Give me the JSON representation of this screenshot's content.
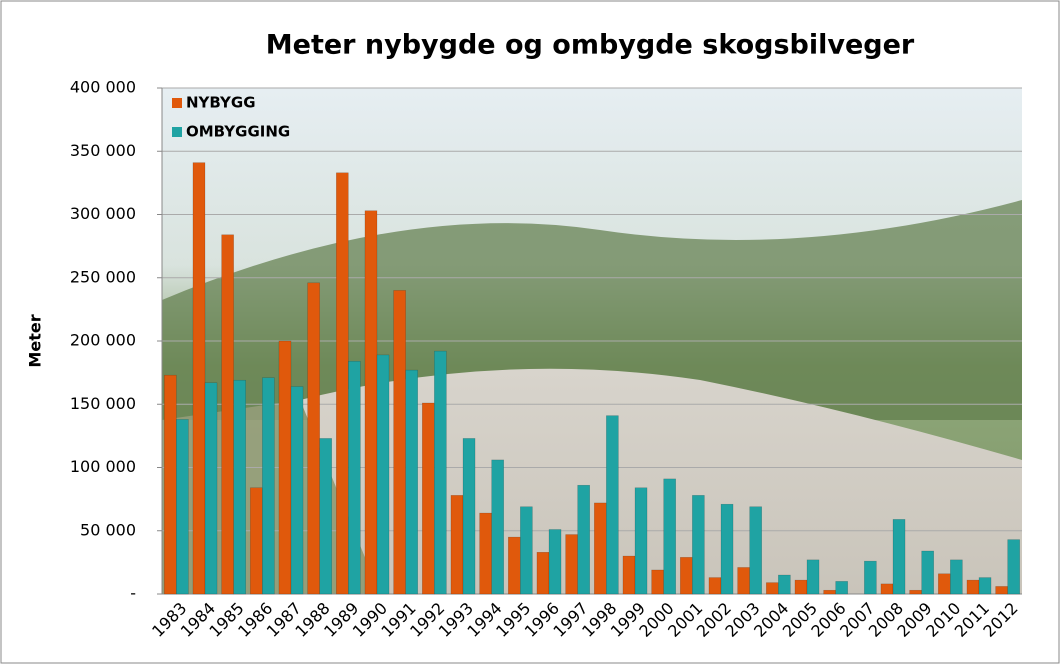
{
  "chart_data": {
    "type": "bar",
    "title": "Meter nybygde og ombygde skogsbilveger",
    "y_label": "Meter",
    "categories": [
      "1983",
      "1984",
      "1985",
      "1986",
      "1987",
      "1988",
      "1989",
      "1990",
      "1991",
      "1992",
      "1993",
      "1994",
      "1995",
      "1996",
      "1997",
      "1998",
      "1999",
      "2000",
      "2001",
      "2002",
      "2003",
      "2004",
      "2005",
      "2006",
      "2007",
      "2008",
      "2009",
      "2010",
      "2011",
      "2012"
    ],
    "series": [
      {
        "name": "NYBYGG",
        "color": "#e0590c",
        "values": [
          173000,
          341000,
          284000,
          84000,
          200000,
          246000,
          333000,
          303000,
          240000,
          151000,
          78000,
          64000,
          45000,
          33000,
          47000,
          72000,
          30000,
          19000,
          29000,
          13000,
          21000,
          9000,
          11000,
          3000,
          0,
          8000,
          3000,
          16000,
          11000,
          6000
        ]
      },
      {
        "name": "OMBYGGING",
        "color": "#1fa3a3",
        "values": [
          138000,
          167000,
          169000,
          171000,
          164000,
          123000,
          184000,
          189000,
          177000,
          192000,
          123000,
          106000,
          69000,
          51000,
          86000,
          141000,
          84000,
          91000,
          78000,
          71000,
          69000,
          15000,
          27000,
          10000,
          26000,
          59000,
          34000,
          27000,
          13000,
          43000
        ]
      }
    ],
    "ylim": [
      0,
      400000
    ],
    "yticks": [
      {
        "value": 0,
        "label": "-"
      },
      {
        "value": 50000,
        "label": "50 000"
      },
      {
        "value": 100000,
        "label": "100 000"
      },
      {
        "value": 150000,
        "label": "150 000"
      },
      {
        "value": 200000,
        "label": "200 000"
      },
      {
        "value": 250000,
        "label": "250 000"
      },
      {
        "value": 300000,
        "label": "300 000"
      },
      {
        "value": 350000,
        "label": "350 000"
      },
      {
        "value": 400000,
        "label": "400 000"
      }
    ],
    "grid": true,
    "legend": "top-left"
  }
}
